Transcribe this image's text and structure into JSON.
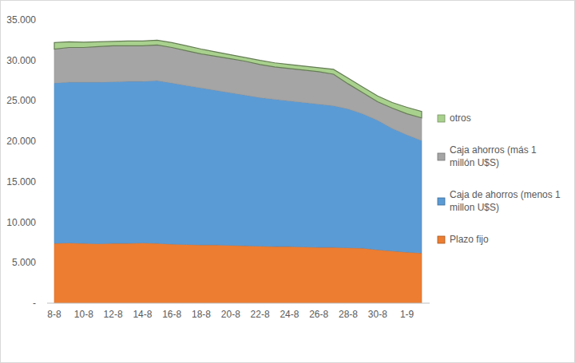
{
  "chart_data": {
    "type": "area",
    "stacked": true,
    "grid": false,
    "legend": "right",
    "categories": [
      "8-8",
      null,
      "10-8",
      null,
      "12-8",
      null,
      "14-8",
      null,
      "16-8",
      null,
      "18-8",
      null,
      "20-8",
      null,
      "22-8",
      null,
      "24-8",
      null,
      "26-8",
      null,
      "28-8",
      null,
      "30-8",
      null,
      "1-9",
      null
    ],
    "ylim": [
      0,
      35000
    ],
    "yticks": [
      {
        "value": 0,
        "label": "-"
      },
      {
        "value": 5000,
        "label": "5.000"
      },
      {
        "value": 10000,
        "label": "10.000"
      },
      {
        "value": 15000,
        "label": "15.000"
      },
      {
        "value": 20000,
        "label": "20.000"
      },
      {
        "value": 25000,
        "label": "25.000"
      },
      {
        "value": 30000,
        "label": "30.000"
      },
      {
        "value": 35000,
        "label": "35.000"
      }
    ],
    "series": [
      {
        "name": "Plazo fijo",
        "color": "#ed7d31",
        "values": [
          7400,
          7450,
          7400,
          7350,
          7400,
          7400,
          7450,
          7400,
          7300,
          7250,
          7200,
          7200,
          7150,
          7100,
          7050,
          7000,
          7000,
          6950,
          6900,
          6900,
          6850,
          6800,
          6600,
          6450,
          6300,
          6200
        ]
      },
      {
        "name": "Caja de ahorros (menos 1 millon U$S)",
        "color": "#5b9bd5",
        "values": [
          19800,
          19850,
          19900,
          19950,
          19950,
          20000,
          19950,
          20100,
          19900,
          19650,
          19400,
          19100,
          18850,
          18600,
          18350,
          18200,
          18000,
          17850,
          17700,
          17500,
          17150,
          16600,
          16000,
          15150,
          14500,
          13900
        ]
      },
      {
        "name": "Caja ahorros (más 1 millón U$S)",
        "color": "#a5a5a5",
        "values": [
          4200,
          4300,
          4300,
          4400,
          4450,
          4400,
          4400,
          4400,
          4400,
          4300,
          4200,
          4200,
          4200,
          4200,
          4100,
          4000,
          4000,
          4000,
          4000,
          3900,
          3100,
          2600,
          2300,
          2500,
          2600,
          2800
        ]
      },
      {
        "name": "otros",
        "color": "#a9d18e",
        "values": [
          800,
          700,
          650,
          600,
          550,
          600,
          600,
          600,
          600,
          600,
          600,
          550,
          500,
          450,
          500,
          500,
          500,
          500,
          500,
          600,
          700,
          700,
          700,
          700,
          800,
          800
        ]
      }
    ]
  }
}
